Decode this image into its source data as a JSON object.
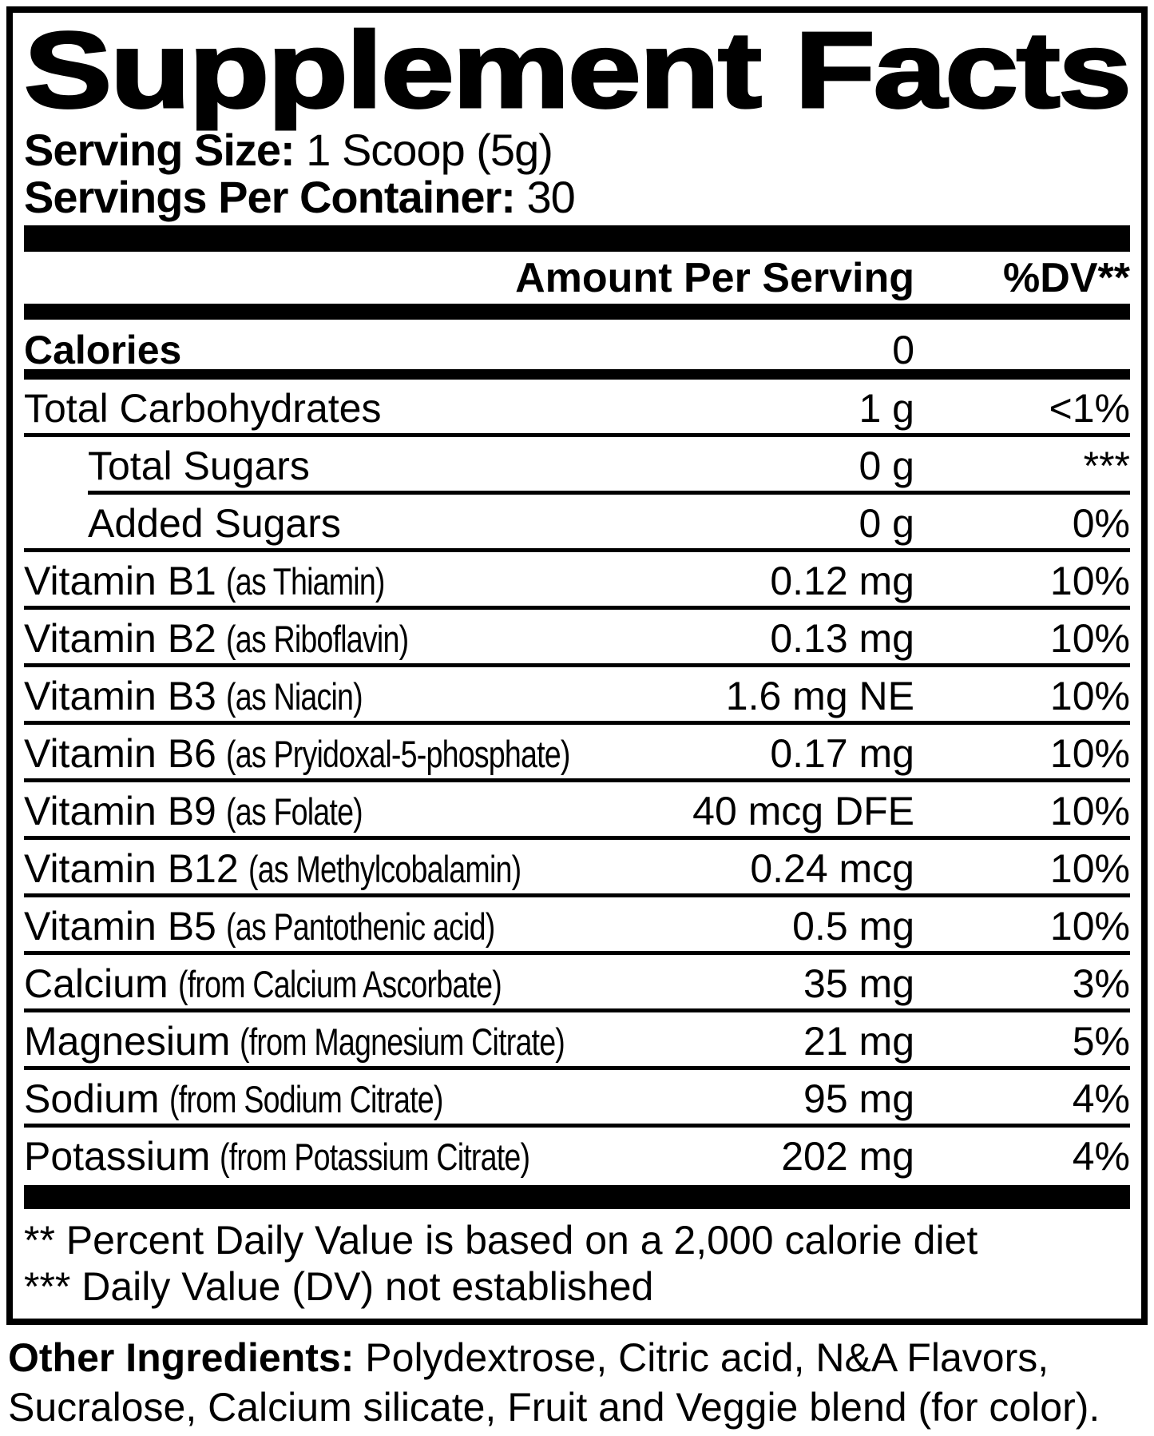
{
  "label": {
    "title": "Supplement Facts",
    "serving_size_label": "Serving Size:",
    "serving_size_value": "1 Scoop (5g)",
    "servings_per_container_label": "Servings Per Container:",
    "servings_per_container_value": "30",
    "col_amount_header": "Amount Per Serving",
    "col_dv_header": "%DV**",
    "footnote_dv": "** Percent Daily Value is based on a 2,000 calorie diet",
    "footnote_not_established": "*** Daily Value (DV) not established",
    "colors": {
      "ink": "#000000",
      "paper": "#ffffff"
    }
  },
  "rows": [
    {
      "name": "Calories",
      "qualifier": "",
      "amount": "0",
      "dv": "",
      "bold": true,
      "indent": false,
      "divider": "thick"
    },
    {
      "name": "Total Carbohydrates",
      "qualifier": "",
      "amount": "1 g",
      "dv": "<1%",
      "bold": false,
      "indent": false,
      "divider": "thin"
    },
    {
      "name": "Total Sugars",
      "qualifier": "",
      "amount": "0 g",
      "dv": "***",
      "bold": false,
      "indent": true,
      "divider": "thin-indent"
    },
    {
      "name": "Added Sugars",
      "qualifier": "",
      "amount": "0 g",
      "dv": "0%",
      "bold": false,
      "indent": true,
      "divider": "thin"
    },
    {
      "name": "Vitamin B1",
      "qualifier": "(as Thiamin)",
      "amount": "0.12 mg",
      "dv": "10%",
      "bold": false,
      "indent": false,
      "divider": "thin"
    },
    {
      "name": "Vitamin B2",
      "qualifier": "(as Riboflavin)",
      "amount": "0.13 mg",
      "dv": "10%",
      "bold": false,
      "indent": false,
      "divider": "thin"
    },
    {
      "name": "Vitamin B3",
      "qualifier": "(as Niacin)",
      "amount": "1.6 mg NE",
      "dv": "10%",
      "bold": false,
      "indent": false,
      "divider": "thin"
    },
    {
      "name": "Vitamin B6",
      "qualifier": "(as Pryidoxal-5-phosphate)",
      "amount": "0.17 mg",
      "dv": "10%",
      "bold": false,
      "indent": false,
      "divider": "thin"
    },
    {
      "name": "Vitamin B9",
      "qualifier": "(as Folate)",
      "amount": "40 mcg DFE",
      "dv": "10%",
      "bold": false,
      "indent": false,
      "divider": "thin"
    },
    {
      "name": "Vitamin B12",
      "qualifier": "(as Methylcobalamin)",
      "amount": "0.24 mcg",
      "dv": "10%",
      "bold": false,
      "indent": false,
      "divider": "thin"
    },
    {
      "name": "Vitamin B5",
      "qualifier": "(as Pantothenic acid)",
      "amount": "0.5 mg",
      "dv": "10%",
      "bold": false,
      "indent": false,
      "divider": "thin"
    },
    {
      "name": "Calcium",
      "qualifier": "(from Calcium Ascorbate)",
      "amount": "35 mg",
      "dv": "3%",
      "bold": false,
      "indent": false,
      "divider": "thin"
    },
    {
      "name": "Magnesium",
      "qualifier": "(from Magnesium Citrate)",
      "amount": "21 mg",
      "dv": "5%",
      "bold": false,
      "indent": false,
      "divider": "thin"
    },
    {
      "name": "Sodium",
      "qualifier": "(from Sodium Citrate)",
      "amount": "95 mg",
      "dv": "4%",
      "bold": false,
      "indent": false,
      "divider": "thin"
    },
    {
      "name": "Potassium",
      "qualifier": "(from Potassium Citrate)",
      "amount": "202 mg",
      "dv": "4%",
      "bold": false,
      "indent": false,
      "divider": "none"
    }
  ],
  "other_ingredients": {
    "label": "Other Ingredients:",
    "line1_rest": "Polydextrose, Citric acid, N&A Flavors,",
    "line2": "Sucralose, Calcium silicate, Fruit and Veggie blend (for color)."
  }
}
